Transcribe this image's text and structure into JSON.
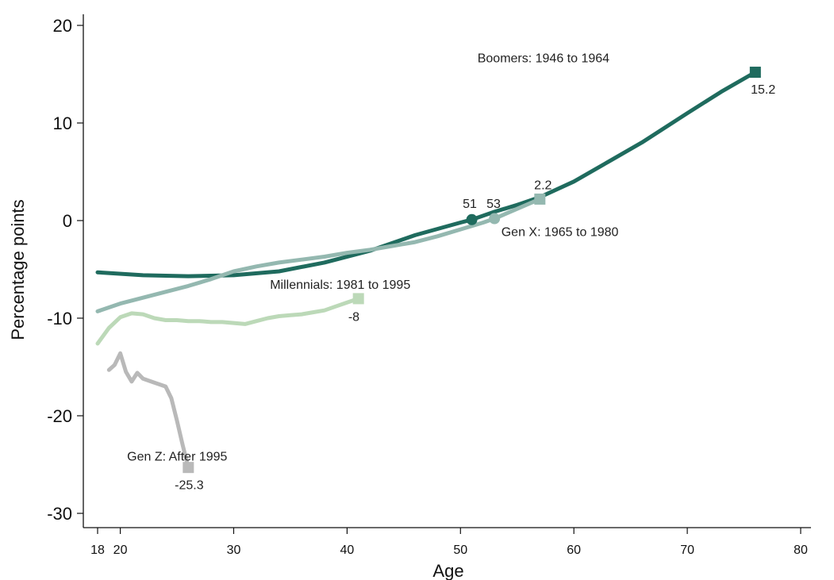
{
  "chart_data": {
    "type": "line",
    "xlabel": "Age",
    "ylabel": "Percentage points",
    "xlim": [
      18,
      81
    ],
    "ylim": [
      -31,
      21
    ],
    "xticks": [
      18,
      20,
      30,
      40,
      50,
      60,
      70,
      80
    ],
    "yticks": [
      20,
      10,
      0,
      -10,
      -20,
      -30
    ],
    "grid": false,
    "legend": "none",
    "series": [
      {
        "name": "Boomers: 1946 to 1964",
        "color": "#1f6b5e",
        "x": [
          18,
          22,
          26,
          30,
          34,
          38,
          42,
          46,
          50,
          51,
          53,
          55,
          57,
          60,
          63,
          66,
          70,
          73,
          76
        ],
        "y": [
          -5.3,
          -5.6,
          -5.7,
          -5.6,
          -5.2,
          -4.3,
          -3.1,
          -1.5,
          -0.2,
          0.1,
          0.9,
          1.6,
          2.4,
          4.0,
          6.0,
          8.0,
          11.0,
          13.2,
          15.2
        ]
      },
      {
        "name": "Gen X: 1965 to 1980",
        "color": "#94b8b0",
        "x": [
          18,
          20,
          22,
          24,
          26,
          28,
          30,
          32,
          34,
          36,
          38,
          40,
          42,
          44,
          46,
          48,
          50,
          52,
          53,
          55,
          57
        ],
        "y": [
          -9.3,
          -8.5,
          -7.9,
          -7.3,
          -6.7,
          -6.0,
          -5.2,
          -4.7,
          -4.3,
          -4.0,
          -3.7,
          -3.3,
          -3.0,
          -2.6,
          -2.2,
          -1.6,
          -0.9,
          -0.2,
          0.2,
          1.2,
          2.2
        ]
      },
      {
        "name": "Millennials: 1981 to 1995",
        "color": "#bcd9b8",
        "x": [
          18,
          19,
          20,
          21,
          22,
          23,
          24,
          25,
          26,
          27,
          28,
          29,
          30,
          31,
          32,
          33,
          34,
          35,
          36,
          37,
          38,
          39,
          40,
          41
        ],
        "y": [
          -12.6,
          -11.0,
          -9.9,
          -9.5,
          -9.6,
          -10.0,
          -10.2,
          -10.2,
          -10.3,
          -10.3,
          -10.4,
          -10.4,
          -10.5,
          -10.6,
          -10.3,
          -10.0,
          -9.8,
          -9.7,
          -9.6,
          -9.4,
          -9.2,
          -8.8,
          -8.4,
          -8.0
        ]
      },
      {
        "name": "Gen Z: After 1995",
        "color": "#b9b9b9",
        "x": [
          19,
          19.5,
          20,
          20.5,
          21,
          21.5,
          22,
          23,
          24,
          24.5,
          25,
          25.5,
          26
        ],
        "y": [
          -15.3,
          -14.8,
          -13.6,
          -15.5,
          -16.5,
          -15.6,
          -16.2,
          -16.6,
          -17.0,
          -18.2,
          -20.5,
          -23.0,
          -25.3
        ]
      }
    ],
    "annotations": [
      {
        "text": "Boomers: 1946 to 1964",
        "x": 51.5,
        "y": 16.2
      },
      {
        "text": "15.2",
        "x": 75.6,
        "y": 13.0
      },
      {
        "text": "2.2",
        "x": 56.5,
        "y": 3.2
      },
      {
        "text": "51",
        "x": 50.2,
        "y": 1.3
      },
      {
        "text": "53",
        "x": 52.3,
        "y": 1.3
      },
      {
        "text": "Gen X: 1965 to 1980",
        "x": 53.6,
        "y": -1.6
      },
      {
        "text": "Millennials: 1981 to 1995",
        "x": 33.2,
        "y": -7.0
      },
      {
        "text": "-8",
        "x": 40.1,
        "y": -10.3
      },
      {
        "text": "Gen Z: After 1995",
        "x": 20.6,
        "y": -24.6
      },
      {
        "text": "-25.3",
        "x": 24.8,
        "y": -27.5
      }
    ],
    "markers": [
      {
        "series": 0,
        "shape": "square",
        "x": 76,
        "y": 15.2,
        "color": "#1f6b5e"
      },
      {
        "series": 0,
        "shape": "circle",
        "x": 51,
        "y": 0.1,
        "color": "#1f6b5e"
      },
      {
        "series": 1,
        "shape": "square",
        "x": 57,
        "y": 2.2,
        "color": "#94b8b0"
      },
      {
        "series": 1,
        "shape": "circle",
        "x": 53,
        "y": 0.2,
        "color": "#94b8b0"
      },
      {
        "series": 2,
        "shape": "square",
        "x": 41,
        "y": -8.0,
        "color": "#bcd9b8"
      },
      {
        "series": 3,
        "shape": "square",
        "x": 26,
        "y": -25.3,
        "color": "#b9b9b9"
      }
    ]
  }
}
